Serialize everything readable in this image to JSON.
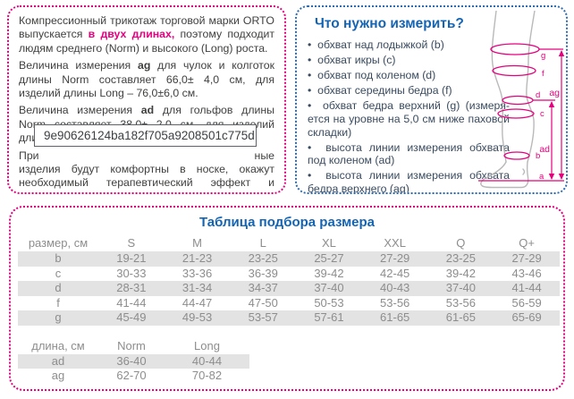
{
  "info_box": {
    "p1": [
      {
        "t": "Компрессионный трикотаж торговой марки ORTO вы­пускается "
      },
      {
        "t": "в двух длинах,",
        "c": "accent"
      },
      {
        "t": " поэтому подходит людям среднего (Norm) и высокого (Long) роста."
      }
    ],
    "p2": [
      {
        "t": "Величина измерения "
      },
      {
        "t": "ag",
        "c": "bold"
      },
      {
        "t": " для чулок и колготок длины Norm составляет 66,0± 4,0 см, для изделий длины Long – 76,0±6,0 см."
      }
    ],
    "p3": [
      {
        "t": "Величина измерения "
      },
      {
        "t": "ad",
        "c": "bold"
      },
      {
        "t": " для гольфов длины Norm составляет 38,0± 2,0 см, для изделий длины Long – 42,0±2,0 см."
      }
    ],
    "p4_visible_start": "При",
    "p4_visible_end": "ные",
    "p4_rest": "изделия будут комфортны в носке, окажут необхо­димый терапевтический эффект и прослужат долго."
  },
  "tooltip": {
    "filename": "9e90626124ba182f705a9208501c775d.png"
  },
  "measure_box": {
    "title": "Что нужно измерить?",
    "items": [
      "обхват над лодыжкой (b)",
      "обхват икры (c)",
      "обхват под коленом (d)",
      "обхват середины бедра (f)",
      "обхват бедра верхний (g) (измеря­ется на уровне на 5,0 см ниже пахо­вой складки)",
      "высота линии измерения обхвата под коленом (ad)",
      "высота линии измерения обхвата бедра верхнего (ag)"
    ],
    "diagram": {
      "labels": {
        "g": "g",
        "f": "f",
        "d": "d",
        "c": "c",
        "b": "b",
        "a": "a",
        "ag": "ag",
        "ad": "ad"
      }
    }
  },
  "size_table": {
    "title": "Таблица подбора размера",
    "header": [
      "размер, см",
      "S",
      "M",
      "L",
      "XL",
      "XXL",
      "Q",
      "Q+"
    ],
    "rows": [
      [
        "b",
        "19-21",
        "21-23",
        "23-25",
        "25-27",
        "27-29",
        "23-25",
        "27-29"
      ],
      [
        "c",
        "30-33",
        "33-36",
        "36-39",
        "39-42",
        "42-45",
        "39-42",
        "43-46"
      ],
      [
        "d",
        "28-31",
        "31-34",
        "34-37",
        "37-40",
        "40-43",
        "37-40",
        "41-44"
      ],
      [
        "f",
        "41-44",
        "44-47",
        "47-50",
        "50-53",
        "53-56",
        "53-56",
        "56-59"
      ],
      [
        "g",
        "45-49",
        "49-53",
        "53-57",
        "57-61",
        "61-65",
        "61-65",
        "65-69"
      ]
    ],
    "length_header": [
      "длина, см",
      "Norm",
      "Long"
    ],
    "length_rows": [
      [
        "ad",
        "36-40",
        "40-44"
      ],
      [
        "ag",
        "62-70",
        "70-82"
      ]
    ]
  },
  "colors": {
    "accent_pink": "#e5007d",
    "accent_blue": "#1464b4",
    "table_text": "#8d8d8d",
    "row_stripe": "#e3e3e3"
  }
}
